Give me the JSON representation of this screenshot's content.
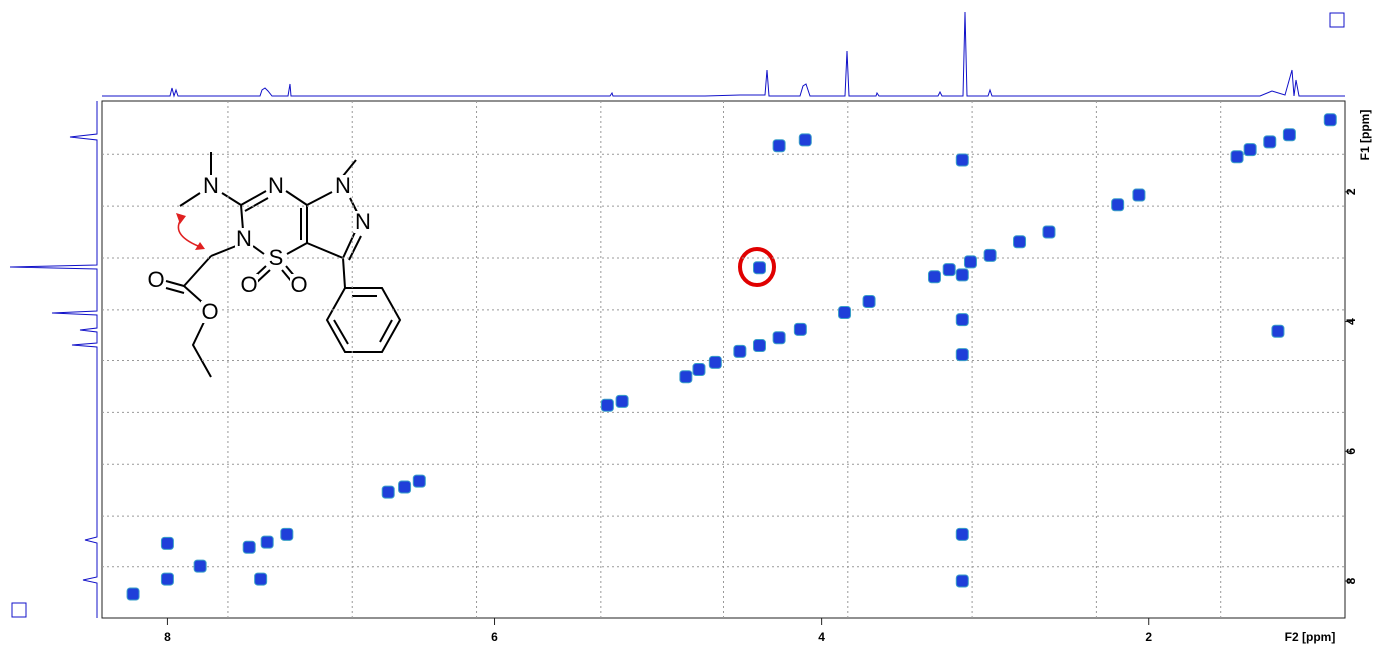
{
  "chart_data": {
    "type": "scatter",
    "x_label": "F2 [ppm]",
    "y_label": "F1 [ppm]",
    "xlim": [
      8.4,
      0.8
    ],
    "ylim": [
      0.6,
      8.57
    ],
    "xticks": [
      8,
      6,
      4,
      2
    ],
    "yticks": [
      2,
      4,
      6,
      8
    ],
    "xgrid": [
      7.63,
      6.87,
      6.11,
      5.35,
      4.6,
      3.84,
      3.08,
      2.32,
      1.56
    ],
    "ygrid": [
      1.42,
      2.22,
      3.02,
      3.82,
      4.6,
      5.4,
      6.2,
      7.0,
      7.78
    ],
    "grid": true,
    "color": "#1f3fd9",
    "x": [
      0.89,
      1.14,
      1.26,
      1.38,
      1.46,
      2.06,
      3.14,
      2.61,
      2.79,
      2.97,
      3.09,
      3.22,
      3.31,
      3.14,
      3.71,
      3.86,
      4.13,
      4.26,
      4.38,
      4.5,
      4.65,
      4.75,
      4.83,
      5.22,
      5.31,
      6.46,
      6.55,
      6.65,
      7.27,
      7.39,
      7.5,
      8.0,
      8.0,
      7.43,
      7.8,
      8.21,
      1.21,
      4.1,
      4.26,
      4.38,
      3.14,
      3.14,
      3.14,
      3.14,
      2.19
    ],
    "values": [
      0.89,
      1.12,
      1.23,
      1.35,
      1.46,
      2.05,
      1.51,
      2.62,
      2.77,
      2.98,
      3.08,
      3.2,
      3.31,
      3.28,
      3.69,
      3.86,
      4.12,
      4.25,
      4.37,
      4.46,
      4.63,
      4.74,
      4.85,
      5.23,
      5.29,
      6.46,
      6.55,
      6.63,
      7.28,
      7.4,
      7.48,
      7.42,
      7.97,
      7.97,
      7.77,
      8.2,
      4.15,
      1.2,
      1.29,
      3.17,
      3.97,
      7.28,
      8.0,
      4.51,
      2.2
    ],
    "annotations": [
      "N",
      "N",
      "N",
      "N",
      "N",
      "S",
      "O",
      "O",
      "O",
      "O"
    ]
  }
}
